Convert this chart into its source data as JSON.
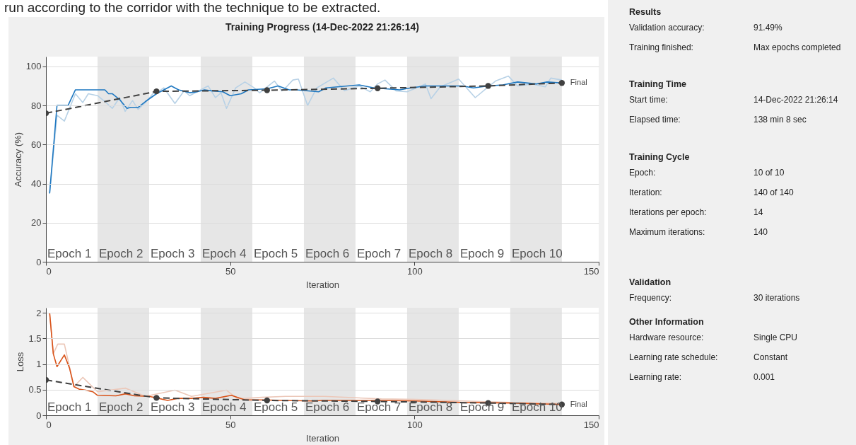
{
  "chart_data": [
    {
      "type": "line",
      "title": "Training Progress (14-Dec-2022 21:26:14)",
      "xlabel": "Iteration",
      "ylabel": "Accuracy (%)",
      "xlim": [
        0,
        150
      ],
      "xticks": [
        0,
        50,
        100,
        150
      ],
      "ylim": [
        0,
        105
      ],
      "yticks": [
        0,
        20,
        40,
        60,
        80,
        100
      ],
      "grid": "y",
      "bands": [
        {
          "axis": "x",
          "from": 14,
          "to": 28,
          "label": "Epoch 2",
          "color": "#e6e6e6"
        },
        {
          "axis": "x",
          "from": 42,
          "to": 56,
          "label": "Epoch 4",
          "color": "#e6e6e6"
        },
        {
          "axis": "x",
          "from": 70,
          "to": 84,
          "label": "Epoch 6",
          "color": "#e6e6e6"
        },
        {
          "axis": "x",
          "from": 98,
          "to": 112,
          "label": "Epoch 8",
          "color": "#e6e6e6"
        },
        {
          "axis": "x",
          "from": 126,
          "to": 140,
          "label": "Epoch 10",
          "color": "#e6e6e6"
        }
      ],
      "series": [
        {
          "color": "#b7d1e6",
          "x": [
            1,
            3,
            5,
            8,
            10,
            11.5,
            14,
            16,
            18,
            20,
            21.5,
            23.5,
            25,
            27,
            29,
            30.5,
            32,
            35,
            37.5,
            39,
            42,
            44,
            46,
            47.5,
            49,
            51.5,
            54,
            56.5,
            58,
            62,
            64,
            65,
            67,
            68.5,
            71,
            73.5,
            78,
            81,
            85,
            88,
            90,
            92,
            95,
            98,
            103,
            104.5,
            107,
            112,
            116.5,
            120,
            122,
            125.5,
            128,
            132,
            135.5,
            137,
            140
          ],
          "values": [
            35,
            75,
            72,
            86,
            81.5,
            86,
            85,
            82,
            78.5,
            84,
            77,
            82.5,
            78,
            81.5,
            86,
            87,
            89,
            81,
            87.5,
            85,
            88,
            90,
            84,
            86.5,
            78.5,
            89,
            92,
            89,
            86.5,
            92.5,
            87.5,
            89,
            93,
            93.5,
            80,
            89,
            94,
            87.5,
            90,
            87,
            91,
            93,
            87.5,
            87,
            91,
            83.5,
            89.5,
            93.5,
            84,
            89.5,
            92.5,
            95,
            90,
            91,
            89.5,
            94,
            93
          ]
        },
        {
          "color": "#1f78c1",
          "x": [
            1,
            3,
            6,
            8,
            16,
            17,
            18,
            20,
            22,
            23,
            25,
            27,
            30,
            32,
            34,
            36,
            39,
            41,
            43,
            45,
            48,
            50,
            53,
            55,
            60,
            63,
            66,
            68,
            74,
            76,
            85,
            89,
            96,
            99,
            103,
            113,
            116,
            120,
            124,
            128,
            133,
            136,
            140
          ],
          "values": [
            35,
            80,
            80,
            88,
            88,
            86,
            86,
            83,
            78.5,
            79,
            79,
            82,
            86,
            88,
            90,
            88,
            86.5,
            87,
            88,
            87.5,
            87,
            85,
            86,
            88,
            88.5,
            90,
            88,
            88,
            87,
            89,
            90.5,
            89,
            88,
            89,
            90,
            90,
            89,
            90,
            90.5,
            92,
            91,
            92,
            91.5
          ]
        },
        {
          "color": "#404040",
          "line_style": "dashed",
          "marker": "circle",
          "x": [
            0,
            30,
            60,
            90,
            120,
            140
          ],
          "values": [
            76,
            87.2,
            87.8,
            88.8,
            90,
            91.5
          ]
        }
      ],
      "annotations": [
        "run according to the corridor with the technique to be extracted.",
        {
          "text": "Final",
          "x": 140,
          "y": 91.5
        },
        "Epoch 1",
        "Epoch 3",
        "Epoch 5",
        "Epoch 7",
        "Epoch 9"
      ]
    },
    {
      "type": "line",
      "xlabel": "Iteration",
      "ylabel": "Loss",
      "xlim": [
        0,
        150
      ],
      "xticks": [
        0,
        50,
        100,
        150
      ],
      "ylim": [
        0,
        2.1
      ],
      "yticks": [
        0,
        0.5,
        1,
        1.5,
        2
      ],
      "grid": "y",
      "bands": [
        {
          "axis": "x",
          "from": 14,
          "to": 28,
          "label": "Epoch 2",
          "color": "#e6e6e6"
        },
        {
          "axis": "x",
          "from": 42,
          "to": 56,
          "label": "Epoch 4",
          "color": "#e6e6e6"
        },
        {
          "axis": "x",
          "from": 70,
          "to": 84,
          "label": "Epoch 6",
          "color": "#e6e6e6"
        },
        {
          "axis": "x",
          "from": 98,
          "to": 112,
          "label": "Epoch 8",
          "color": "#e6e6e6"
        },
        {
          "axis": "x",
          "from": 126,
          "to": 140,
          "label": "Epoch 10",
          "color": "#e6e6e6"
        }
      ],
      "series": [
        {
          "color": "#ecc7b8",
          "x": [
            1,
            2,
            3.2,
            5,
            7.6,
            10,
            14,
            21.6,
            27,
            35,
            39.5,
            49,
            52,
            58.6,
            65,
            75.5,
            91,
            100.5,
            113,
            126,
            139.5
          ],
          "values": [
            2,
            1.2,
            1.39,
            1.39,
            0.56,
            0.74,
            0.46,
            0.53,
            0.37,
            0.49,
            0.37,
            0.49,
            0.32,
            0.35,
            0.37,
            0.37,
            0.32,
            0.31,
            0.28,
            0.25,
            0.23
          ]
        },
        {
          "color": "#d95319",
          "x": [
            1,
            2,
            3,
            5,
            6.4,
            7.6,
            9,
            10.8,
            12.7,
            14,
            19,
            21.6,
            24,
            28,
            30.6,
            33,
            35.7,
            39.5,
            42.7,
            46,
            50.3,
            54,
            58.6,
            65,
            72.6,
            75,
            89.6,
            100.5,
            113,
            126,
            140
          ],
          "values": [
            2,
            1.2,
            0.95,
            1.18,
            0.92,
            0.56,
            0.51,
            0.49,
            0.46,
            0.39,
            0.38,
            0.42,
            0.38,
            0.37,
            0.33,
            0.29,
            0.33,
            0.33,
            0.35,
            0.33,
            0.39,
            0.3,
            0.3,
            0.29,
            0.28,
            0.29,
            0.29,
            0.28,
            0.25,
            0.24,
            0.21
          ]
        },
        {
          "color": "#404040",
          "line_style": "dashed",
          "marker": "circle",
          "x": [
            0,
            30,
            60,
            90,
            120,
            140
          ],
          "values": [
            0.69,
            0.34,
            0.29,
            0.27,
            0.24,
            0.21
          ]
        }
      ],
      "annotations": [
        {
          "text": "Final",
          "x": 140,
          "y": 0.21
        },
        "Epoch 1",
        "Epoch 3",
        "Epoch 5",
        "Epoch 7",
        "Epoch 9"
      ]
    },
    {
      "type": "other",
      "title": "Results",
      "annotations": [
        "Validation accuracy:",
        "91.49%",
        "Training finished:",
        "Max epochs completed"
      ]
    },
    {
      "type": "other",
      "title": "Training Time",
      "annotations": [
        "Start time:",
        "14-Dec-2022 21:26:14",
        "Elapsed time:",
        "138 min 8 sec"
      ]
    },
    {
      "type": "other",
      "title": "Training Cycle",
      "annotations": [
        "Epoch:",
        "10 of 10",
        "Iteration:",
        "140 of 140",
        "Iterations per epoch:",
        "14",
        "Maximum iterations:",
        "140"
      ]
    },
    {
      "type": "other",
      "title": "Validation",
      "annotations": [
        "Frequency:",
        "30 iterations"
      ]
    },
    {
      "type": "other",
      "title": "Other Information",
      "annotations": [
        "Hardware resource:",
        "Single CPU",
        "Learning rate schedule:",
        "Constant",
        "Learning rate:",
        "0.001"
      ]
    }
  ]
}
